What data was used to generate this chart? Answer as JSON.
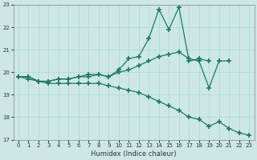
{
  "xlabel": "Humidex (Indice chaleur)",
  "background_color": "#cde8e4",
  "grid_color": "#a8d8d0",
  "line_color": "#1a7a6a",
  "hours": [
    0,
    1,
    2,
    3,
    4,
    5,
    6,
    7,
    8,
    9,
    10,
    11,
    12,
    13,
    14,
    15,
    16,
    17,
    18,
    19,
    20,
    21,
    22,
    23
  ],
  "line_top": [
    19.8,
    19.8,
    19.6,
    19.6,
    19.7,
    19.7,
    19.8,
    19.9,
    19.9,
    19.8,
    20.1,
    20.6,
    20.7,
    21.5,
    22.8,
    21.9,
    22.9,
    20.5,
    20.6,
    20.5,
    null,
    null,
    null,
    null
  ],
  "line_mid": [
    19.8,
    19.8,
    19.6,
    19.6,
    19.7,
    19.7,
    19.8,
    19.8,
    19.9,
    19.8,
    20.0,
    20.1,
    20.3,
    20.5,
    20.7,
    20.8,
    20.9,
    20.6,
    20.5,
    19.3,
    20.5,
    20.5,
    null,
    null
  ],
  "line_bot": [
    19.8,
    19.7,
    19.6,
    19.5,
    19.5,
    19.5,
    19.5,
    19.5,
    19.5,
    19.4,
    19.3,
    19.2,
    19.1,
    18.9,
    18.7,
    18.5,
    18.3,
    18.0,
    17.9,
    17.6,
    17.8,
    17.5,
    17.3,
    17.2
  ],
  "ylim": [
    17,
    23
  ],
  "xlim": [
    -0.5,
    23.5
  ],
  "yticks": [
    17,
    18,
    19,
    20,
    21,
    22,
    23
  ],
  "xticks": [
    0,
    1,
    2,
    3,
    4,
    5,
    6,
    7,
    8,
    9,
    10,
    11,
    12,
    13,
    14,
    15,
    16,
    17,
    18,
    19,
    20,
    21,
    22,
    23
  ]
}
